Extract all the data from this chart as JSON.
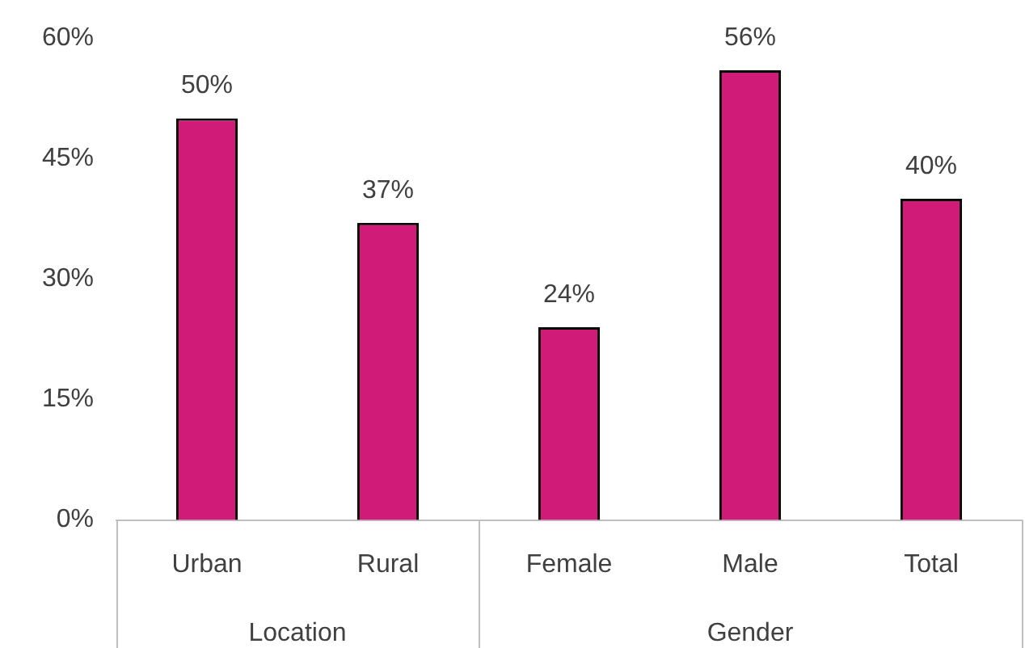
{
  "chart_data": {
    "type": "bar",
    "categories": [
      "Urban",
      "Rural",
      "Female",
      "Male",
      "Total"
    ],
    "values": [
      50,
      37,
      24,
      56,
      40
    ],
    "value_labels": [
      "50%",
      "37%",
      "24%",
      "56%",
      "40%"
    ],
    "color": "#d01b78",
    "ylim": [
      0,
      60
    ],
    "yticks": [
      {
        "value": 0,
        "label": "0%"
      },
      {
        "value": 15,
        "label": "15%"
      },
      {
        "value": 30,
        "label": "30%"
      },
      {
        "value": 45,
        "label": "45%"
      },
      {
        "value": 60,
        "label": "60%"
      }
    ],
    "annotations": [
      "Location",
      "Gender"
    ],
    "grid": false,
    "legend": false
  }
}
